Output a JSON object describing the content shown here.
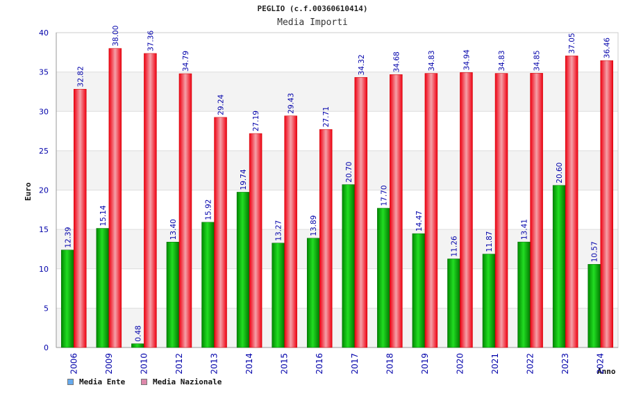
{
  "chart_data": {
    "type": "bar",
    "title": "PEGLIO (c.f.00360610414)",
    "subtitle": "Media Importi",
    "xlabel": "Anno",
    "ylabel": "Euro",
    "ylim": [
      0,
      40
    ],
    "yticks": [
      "0",
      "5",
      "10",
      "15",
      "20",
      "25",
      "30",
      "35",
      "40"
    ],
    "grid": true,
    "legend_position": "bottom-left",
    "categories": [
      "2006",
      "2009",
      "2010",
      "2012",
      "2013",
      "2014",
      "2015",
      "2016",
      "2017",
      "2018",
      "2019",
      "2020",
      "2021",
      "2022",
      "2023",
      "2024"
    ],
    "series": [
      {
        "name": "Media Ente",
        "color": "#00aa00",
        "legend_color": "#66aaee",
        "values": [
          12.39,
          15.14,
          0.48,
          13.4,
          15.92,
          19.74,
          13.27,
          13.89,
          20.7,
          17.7,
          14.47,
          11.26,
          11.87,
          13.41,
          20.6,
          10.57
        ],
        "labels": [
          "12.39",
          "15.14",
          "0.48",
          "13.40",
          "15.92",
          "19.74",
          "13.27",
          "13.89",
          "20.70",
          "17.70",
          "14.47",
          "11.26",
          "11.87",
          "13.41",
          "20.60",
          "10.57"
        ]
      },
      {
        "name": "Media Nazionale",
        "color": "#ee1122",
        "legend_color": "#dd88aa",
        "values": [
          32.82,
          38.0,
          37.36,
          34.79,
          29.24,
          27.19,
          29.43,
          27.71,
          34.32,
          34.68,
          34.83,
          34.94,
          34.83,
          34.85,
          37.05,
          36.46
        ],
        "labels": [
          "32.82",
          "38.00",
          "37.36",
          "34.79",
          "29.24",
          "27.19",
          "29.43",
          "27.71",
          "34.32",
          "34.68",
          "34.83",
          "34.94",
          "34.83",
          "34.85",
          "37.05",
          "36.46"
        ]
      }
    ]
  }
}
